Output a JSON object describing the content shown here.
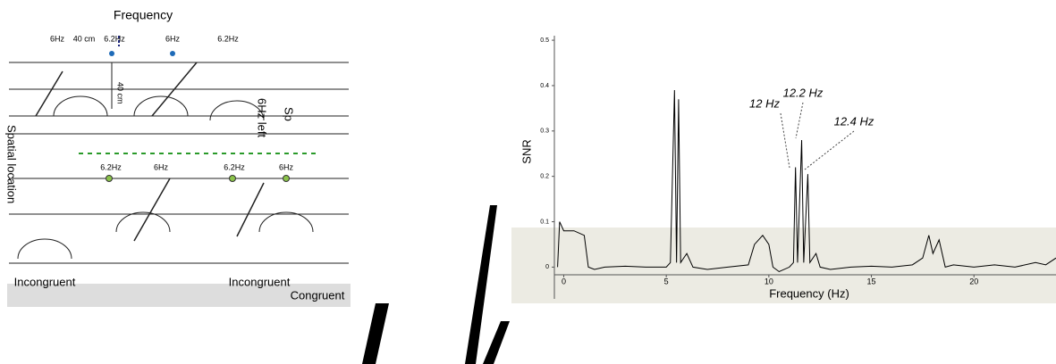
{
  "diagram": {
    "title": "Frequency",
    "top_labels": [
      "6Hz",
      "40 cm",
      "6.2Hz",
      "6Hz",
      "6.2Hz"
    ],
    "bottom_labels": [
      "6.2Hz",
      "6Hz",
      "6.2Hz",
      "6Hz"
    ],
    "vertical_distance": "40 cm",
    "side_label": "6Hz left",
    "side_label_2": "Sp",
    "axis_label": "Spatial location",
    "conditions": [
      "Incongruent",
      "Incongruent",
      "Congruent"
    ]
  },
  "chart_data": {
    "type": "line",
    "xlabel": "Frequency (Hz)",
    "ylabel": "SNR",
    "xlim": [
      -2.2,
      24
    ],
    "ylim": [
      -0.07,
      0.51
    ],
    "xticks": [
      0,
      5,
      10,
      15,
      20
    ],
    "yticks": [
      0,
      0.1,
      0.2,
      0.3,
      0.4,
      0.5
    ],
    "annotations": [
      "12 Hz",
      "12.2 Hz",
      "12.4 Hz"
    ],
    "series": [
      {
        "color": "#000000",
        "x": [
          -0.3,
          -0.2,
          0,
          0.5,
          1.0,
          1.2,
          1.5,
          2,
          3,
          4,
          5,
          5.2,
          5.4,
          5.5,
          5.6,
          5.7,
          6,
          6.3,
          7,
          8,
          9,
          9.3,
          9.7,
          10,
          10.2,
          10.5,
          11,
          11.2,
          11.3,
          11.4,
          11.6,
          11.7,
          11.9,
          12.0,
          12.3,
          12.5,
          13,
          14,
          15,
          16,
          17,
          17.5,
          17.8,
          18,
          18.3,
          18.6,
          19,
          20,
          21,
          22,
          23,
          23.5,
          24
        ],
        "values": [
          0.0,
          0.1,
          0.08,
          0.08,
          0.07,
          0.0,
          -0.005,
          0.0,
          0.002,
          0.0,
          0.0,
          0.01,
          0.39,
          0.01,
          0.37,
          0.01,
          0.03,
          0.0,
          -0.005,
          0.0,
          0.005,
          0.05,
          0.07,
          0.05,
          0.0,
          -0.01,
          0.0,
          0.01,
          0.22,
          0.01,
          0.28,
          0.01,
          0.205,
          0.01,
          0.03,
          0.0,
          -0.005,
          0.0,
          0.002,
          0.0,
          0.005,
          0.02,
          0.07,
          0.03,
          0.06,
          0.0,
          0.005,
          0.0,
          0.005,
          0.0,
          0.01,
          0.005,
          0.02
        ]
      }
    ]
  }
}
